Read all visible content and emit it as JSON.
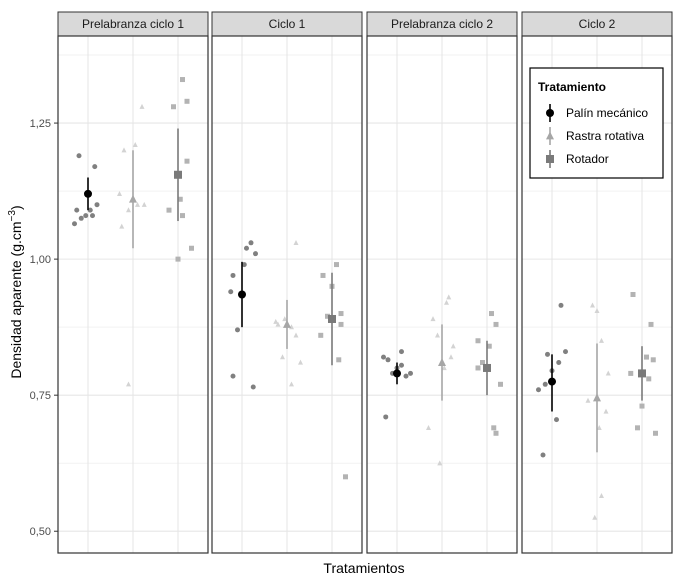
{
  "chart_data": {
    "type": "scatter",
    "xlabel": "Tratamientos",
    "ylabel": "Densidad aparente (g.cm",
    "ylabel_sup": "−3",
    "ylabel_close": ")",
    "ylim": [
      0.46,
      1.41
    ],
    "yticks": [
      0.5,
      0.75,
      1.0,
      1.25
    ],
    "ytick_labels": [
      "0,50",
      "0,75",
      "1,00",
      "1,25"
    ],
    "grid": true,
    "legend": {
      "title": "Tratamiento",
      "placement": "top-right",
      "entries": [
        "Palín mecánico",
        "Rastra rotativa",
        "Rotador"
      ]
    },
    "treatments": [
      {
        "name": "Palín mecánico",
        "marker": "circle",
        "raw_color": "#808080",
        "summary_color": "#000000"
      },
      {
        "name": "Rastra rotativa",
        "marker": "triangle",
        "raw_color": "#d3d3d3",
        "summary_color": "#a6a6a6"
      },
      {
        "name": "Rotador",
        "marker": "square",
        "raw_color": "#b3b3b3",
        "summary_color": "#7a7a7a"
      }
    ],
    "panels": [
      {
        "title": "Prelabranza ciclo 1",
        "groups": [
          {
            "mean": 1.12,
            "lower": 1.09,
            "upper": 1.15,
            "points": [
              [
                -0.2,
                1.19
              ],
              [
                0.15,
                1.17
              ],
              [
                -0.25,
                1.09
              ],
              [
                0.1,
                1.08
              ],
              [
                -0.15,
                1.075
              ],
              [
                0.05,
                1.09
              ],
              [
                -0.05,
                1.08
              ],
              [
                -0.3,
                1.065
              ],
              [
                0.2,
                1.1
              ]
            ]
          },
          {
            "mean": 1.11,
            "lower": 1.02,
            "upper": 1.2,
            "points": [
              [
                -0.2,
                1.2
              ],
              [
                0.2,
                1.28
              ],
              [
                -0.25,
                1.06
              ],
              [
                0.1,
                1.1
              ],
              [
                -0.1,
                1.09
              ],
              [
                0.25,
                1.1
              ],
              [
                -0.1,
                0.77
              ],
              [
                0.05,
                1.21
              ],
              [
                -0.3,
                1.12
              ]
            ]
          },
          {
            "mean": 1.155,
            "lower": 1.07,
            "upper": 1.24,
            "points": [
              [
                0.1,
                1.33
              ],
              [
                0.2,
                1.29
              ],
              [
                -0.1,
                1.28
              ],
              [
                -0.2,
                1.09
              ],
              [
                0.05,
                1.11
              ],
              [
                0.3,
                1.02
              ],
              [
                0.0,
                1.0
              ],
              [
                0.1,
                1.08
              ],
              [
                0.2,
                1.18
              ]
            ]
          }
        ]
      },
      {
        "title": "Ciclo 1",
        "groups": [
          {
            "mean": 0.935,
            "lower": 0.875,
            "upper": 0.995,
            "points": [
              [
                -0.2,
                0.97
              ],
              [
                0.2,
                1.03
              ],
              [
                0.3,
                1.01
              ],
              [
                -0.25,
                0.94
              ],
              [
                0.1,
                1.02
              ],
              [
                -0.1,
                0.87
              ],
              [
                -0.2,
                0.785
              ],
              [
                0.25,
                0.765
              ],
              [
                0.05,
                0.99
              ]
            ]
          },
          {
            "mean": 0.88,
            "lower": 0.835,
            "upper": 0.925,
            "points": [
              [
                -0.2,
                0.88
              ],
              [
                0.2,
                1.03
              ],
              [
                -0.1,
                0.82
              ],
              [
                0.1,
                0.875
              ],
              [
                -0.25,
                0.885
              ],
              [
                0.3,
                0.81
              ],
              [
                0.1,
                0.77
              ],
              [
                -0.05,
                0.89
              ],
              [
                0.2,
                0.86
              ]
            ]
          },
          {
            "mean": 0.89,
            "lower": 0.805,
            "upper": 0.975,
            "points": [
              [
                -0.2,
                0.97
              ],
              [
                0.1,
                0.99
              ],
              [
                0.2,
                0.88
              ],
              [
                -0.25,
                0.86
              ],
              [
                0.15,
                0.815
              ],
              [
                0.0,
                0.95
              ],
              [
                0.3,
                0.6
              ],
              [
                -0.1,
                0.895
              ],
              [
                0.2,
                0.9
              ]
            ]
          }
        ]
      },
      {
        "title": "Prelabranza ciclo 2",
        "groups": [
          {
            "mean": 0.79,
            "lower": 0.77,
            "upper": 0.81,
            "points": [
              [
                -0.3,
                0.82
              ],
              [
                -0.2,
                0.815
              ],
              [
                0.1,
                0.83
              ],
              [
                0.2,
                0.785
              ],
              [
                -0.1,
                0.79
              ],
              [
                0.0,
                0.8
              ],
              [
                -0.25,
                0.71
              ],
              [
                0.1,
                0.805
              ],
              [
                0.3,
                0.79
              ]
            ]
          },
          {
            "mean": 0.81,
            "lower": 0.74,
            "upper": 0.88,
            "points": [
              [
                -0.2,
                0.89
              ],
              [
                0.15,
                0.93
              ],
              [
                0.1,
                0.92
              ],
              [
                -0.3,
                0.69
              ],
              [
                0.2,
                0.82
              ],
              [
                -0.05,
                0.625
              ],
              [
                0.25,
                0.84
              ],
              [
                0.05,
                0.8
              ],
              [
                -0.1,
                0.86
              ]
            ]
          },
          {
            "mean": 0.8,
            "lower": 0.75,
            "upper": 0.85,
            "points": [
              [
                0.1,
                0.9
              ],
              [
                0.2,
                0.88
              ],
              [
                -0.2,
                0.85
              ],
              [
                0.05,
                0.84
              ],
              [
                -0.1,
                0.81
              ],
              [
                0.15,
                0.69
              ],
              [
                0.2,
                0.68
              ],
              [
                -0.2,
                0.8
              ],
              [
                0.3,
                0.77
              ]
            ]
          }
        ]
      },
      {
        "title": "Ciclo 2",
        "groups": [
          {
            "mean": 0.775,
            "lower": 0.72,
            "upper": 0.825,
            "points": [
              [
                0.2,
                0.915
              ],
              [
                -0.1,
                0.825
              ],
              [
                0.3,
                0.83
              ],
              [
                -0.3,
                0.76
              ],
              [
                0.1,
                0.705
              ],
              [
                -0.2,
                0.64
              ],
              [
                0.0,
                0.795
              ],
              [
                0.15,
                0.81
              ],
              [
                -0.15,
                0.77
              ]
            ]
          },
          {
            "mean": 0.745,
            "lower": 0.645,
            "upper": 0.845,
            "points": [
              [
                -0.1,
                0.915
              ],
              [
                0.0,
                0.905
              ],
              [
                0.1,
                0.85
              ],
              [
                0.25,
                0.79
              ],
              [
                0.05,
                0.69
              ],
              [
                -0.05,
                0.525
              ],
              [
                0.1,
                0.565
              ],
              [
                -0.2,
                0.74
              ],
              [
                0.2,
                0.72
              ]
            ]
          },
          {
            "mean": 0.79,
            "lower": 0.74,
            "upper": 0.84,
            "points": [
              [
                -0.2,
                0.935
              ],
              [
                0.2,
                0.88
              ],
              [
                0.1,
                0.82
              ],
              [
                0.25,
                0.815
              ],
              [
                0.0,
                0.73
              ],
              [
                -0.1,
                0.69
              ],
              [
                0.3,
                0.68
              ],
              [
                0.15,
                0.78
              ],
              [
                -0.25,
                0.79
              ]
            ]
          }
        ]
      }
    ]
  }
}
